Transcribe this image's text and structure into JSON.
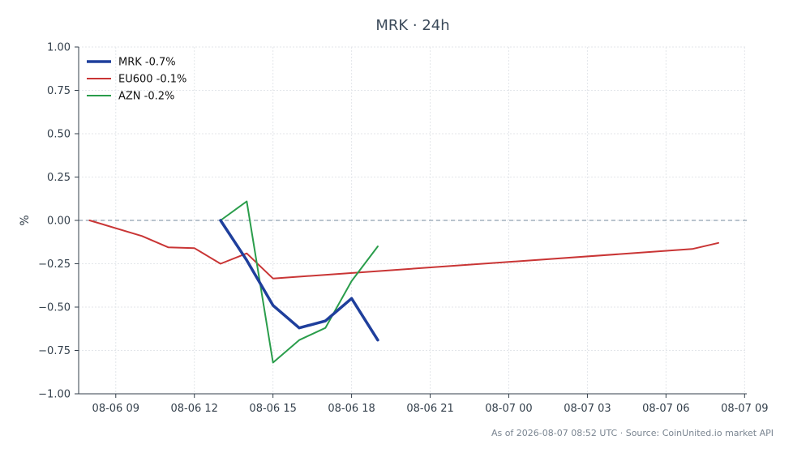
{
  "chart_data": {
    "type": "line",
    "title": "MRK · 24h",
    "xlabel": "",
    "ylabel": "%",
    "ylim": [
      -1.0,
      1.0
    ],
    "xlim": [
      "2026-08-06 07:35",
      "2026-08-07 09:05"
    ],
    "yticks": [
      1.0,
      0.75,
      0.5,
      0.25,
      0.0,
      -0.25,
      -0.5,
      -0.75,
      -1.0
    ],
    "ytick_labels": [
      "1.00",
      "0.75",
      "0.50",
      "0.25",
      "0.00",
      "−0.25",
      "−0.50",
      "−0.75",
      "−1.00"
    ],
    "xticks": [
      "2026-08-06 09:00",
      "2026-08-06 12:00",
      "2026-08-06 15:00",
      "2026-08-06 18:00",
      "2026-08-06 21:00",
      "2026-08-07 00:00",
      "2026-08-07 03:00",
      "2026-08-07 06:00",
      "2026-08-07 09:00"
    ],
    "xtick_labels": [
      "08-06 09",
      "08-06 12",
      "08-06 15",
      "08-06 18",
      "08-06 21",
      "08-07 00",
      "08-07 03",
      "08-07 06",
      "08-07 09"
    ],
    "grid": true,
    "zero_line": true,
    "legend_position": "top-left",
    "series": [
      {
        "name": "MRK -0.7%",
        "color": "#1f3f9c",
        "x": [
          "2026-08-06 13:00",
          "2026-08-06 14:00",
          "2026-08-06 15:00",
          "2026-08-06 16:00",
          "2026-08-06 17:00",
          "2026-08-06 18:00",
          "2026-08-06 19:00"
        ],
        "values": [
          0.0,
          -0.23,
          -0.49,
          -0.62,
          -0.58,
          -0.45,
          -0.69
        ]
      },
      {
        "name": "EU600 -0.1%",
        "color": "#c93535",
        "x": [
          "2026-08-06 08:00",
          "2026-08-06 10:00",
          "2026-08-06 11:00",
          "2026-08-06 12:00",
          "2026-08-06 13:00",
          "2026-08-06 14:00",
          "2026-08-06 15:00",
          "2026-08-07 07:00",
          "2026-08-07 08:00"
        ],
        "values": [
          0.0,
          -0.09,
          -0.155,
          -0.16,
          -0.25,
          -0.19,
          -0.335,
          -0.165,
          -0.13
        ]
      },
      {
        "name": "AZN -0.2%",
        "color": "#2a9d4b",
        "x": [
          "2026-08-06 13:00",
          "2026-08-06 14:00",
          "2026-08-06 15:00",
          "2026-08-06 16:00",
          "2026-08-06 17:00",
          "2026-08-06 18:00",
          "2026-08-06 19:00"
        ],
        "values": [
          0.0,
          0.11,
          -0.82,
          -0.69,
          -0.62,
          -0.35,
          -0.15
        ]
      }
    ],
    "footer": "As of 2026-08-07 08:52 UTC · Source: CoinUnited.io market API"
  }
}
